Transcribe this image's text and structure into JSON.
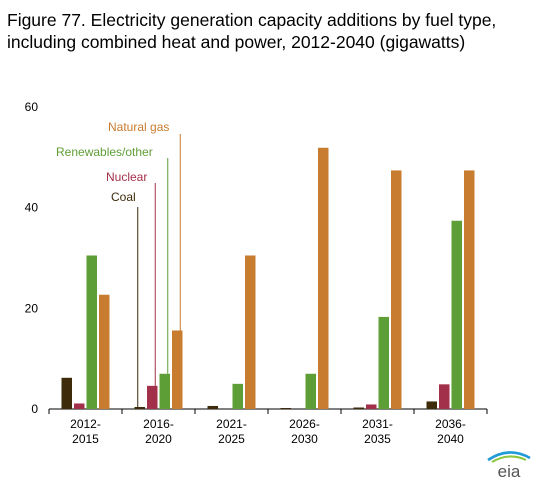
{
  "title": "Figure 77. Electricity generation capacity additions by fuel type, including combined heat and power, 2012-2040 (gigawatts)",
  "logo_text": "eia",
  "chart_data": {
    "type": "bar",
    "title": "Figure 77. Electricity generation capacity additions by fuel type, including combined heat and power, 2012-2040 (gigawatts)",
    "categories": [
      [
        "2012-",
        "2015"
      ],
      [
        "2016-",
        "2020"
      ],
      [
        "2021-",
        "2025"
      ],
      [
        "2026-",
        "2030"
      ],
      [
        "2031-",
        "2035"
      ],
      [
        "2036-",
        "2040"
      ]
    ],
    "ylim": [
      0,
      60
    ],
    "yticks": [
      0,
      20,
      40,
      60
    ],
    "grid": false,
    "legend_placement": "callout labels above 2016-2020 group",
    "series": [
      {
        "name": "Coal",
        "color": "#3d2b0a",
        "values": [
          6.2,
          0.4,
          0.6,
          0.2,
          0.3,
          1.5
        ]
      },
      {
        "name": "Nuclear",
        "color": "#a3304a",
        "values": [
          1.1,
          4.6,
          0.0,
          0.0,
          0.9,
          4.9
        ]
      },
      {
        "name": "Renewables/other",
        "color": "#5e9e36",
        "values": [
          30.5,
          7.0,
          5.0,
          7.0,
          18.3,
          37.4
        ]
      },
      {
        "name": "Natural gas",
        "color": "#c77c30",
        "values": [
          22.7,
          15.6,
          30.5,
          51.9,
          47.4,
          47.4
        ]
      }
    ]
  }
}
